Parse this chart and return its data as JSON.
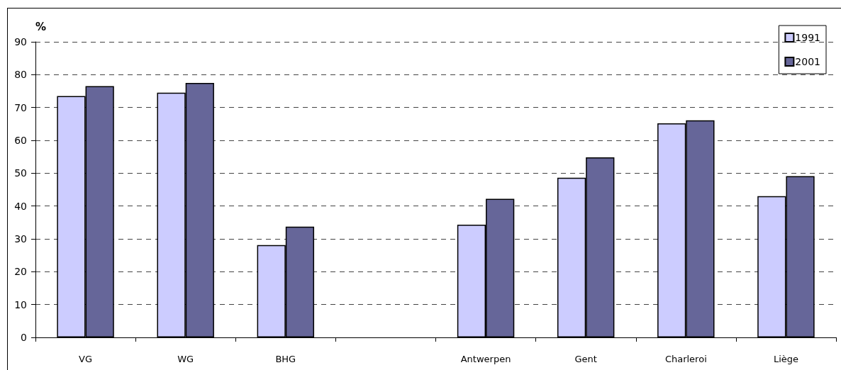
{
  "chart_data": {
    "type": "bar",
    "ylabel": "%",
    "categories": [
      "VG",
      "WG",
      "BHG",
      null,
      "Antwerpen",
      "Gent",
      "Charleroi",
      "Liège"
    ],
    "series": [
      {
        "name": "1991",
        "color": "#ccccff",
        "values": [
          73.5,
          74.5,
          28.1,
          null,
          34.3,
          48.6,
          65.2,
          43.0
        ]
      },
      {
        "name": "2001",
        "color": "#666699",
        "values": [
          76.5,
          77.5,
          33.7,
          null,
          42.2,
          54.8,
          66.1,
          49.1
        ]
      }
    ],
    "ylim": [
      0,
      90
    ],
    "yticks": [
      0,
      10,
      20,
      30,
      40,
      50,
      60,
      70,
      80,
      90
    ],
    "grid": "y",
    "legend": "top right"
  }
}
